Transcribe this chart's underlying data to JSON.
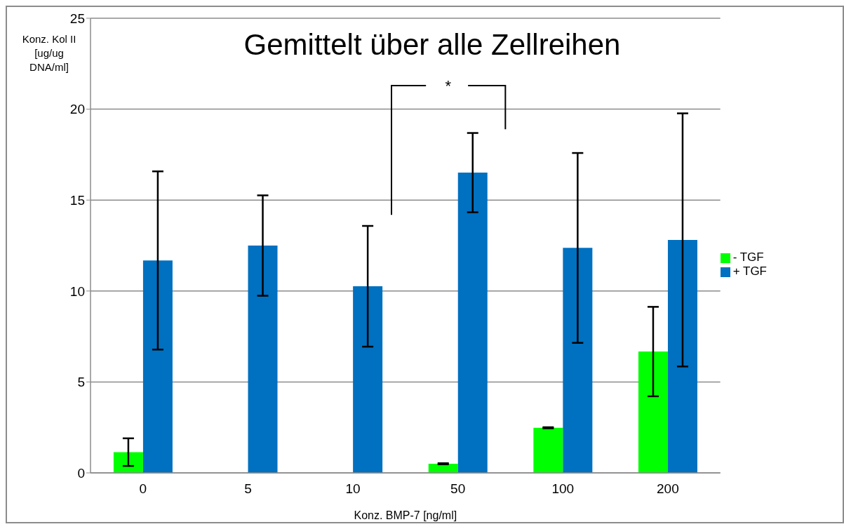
{
  "chart_data": {
    "type": "bar",
    "title": "Gemittelt über alle Zellreihen",
    "xlabel": "Konz. BMP-7 [ng/ml]",
    "ylabel": "Konz. Kol II [ug/ug DNA/ml]",
    "categories": [
      "0",
      "5",
      "10",
      "50",
      "100",
      "200"
    ],
    "series": [
      {
        "name": "- TGF",
        "color": "#00ff00",
        "values": [
          1.14,
          null,
          null,
          0.5,
          2.48,
          6.67
        ],
        "errors": [
          0.76,
          null,
          null,
          0.03,
          0.03,
          2.46
        ]
      },
      {
        "name": "+ TGF",
        "color": "#0070c0",
        "values": [
          11.68,
          12.5,
          10.26,
          16.51,
          12.37,
          12.81
        ],
        "errors": [
          4.9,
          2.76,
          3.32,
          2.18,
          5.22,
          6.96
        ]
      }
    ],
    "ylim": [
      0,
      25
    ],
    "yticks": [
      0,
      5,
      10,
      15,
      20,
      25
    ],
    "grid": "y",
    "legend": "right",
    "annotations": [
      "*"
    ]
  }
}
